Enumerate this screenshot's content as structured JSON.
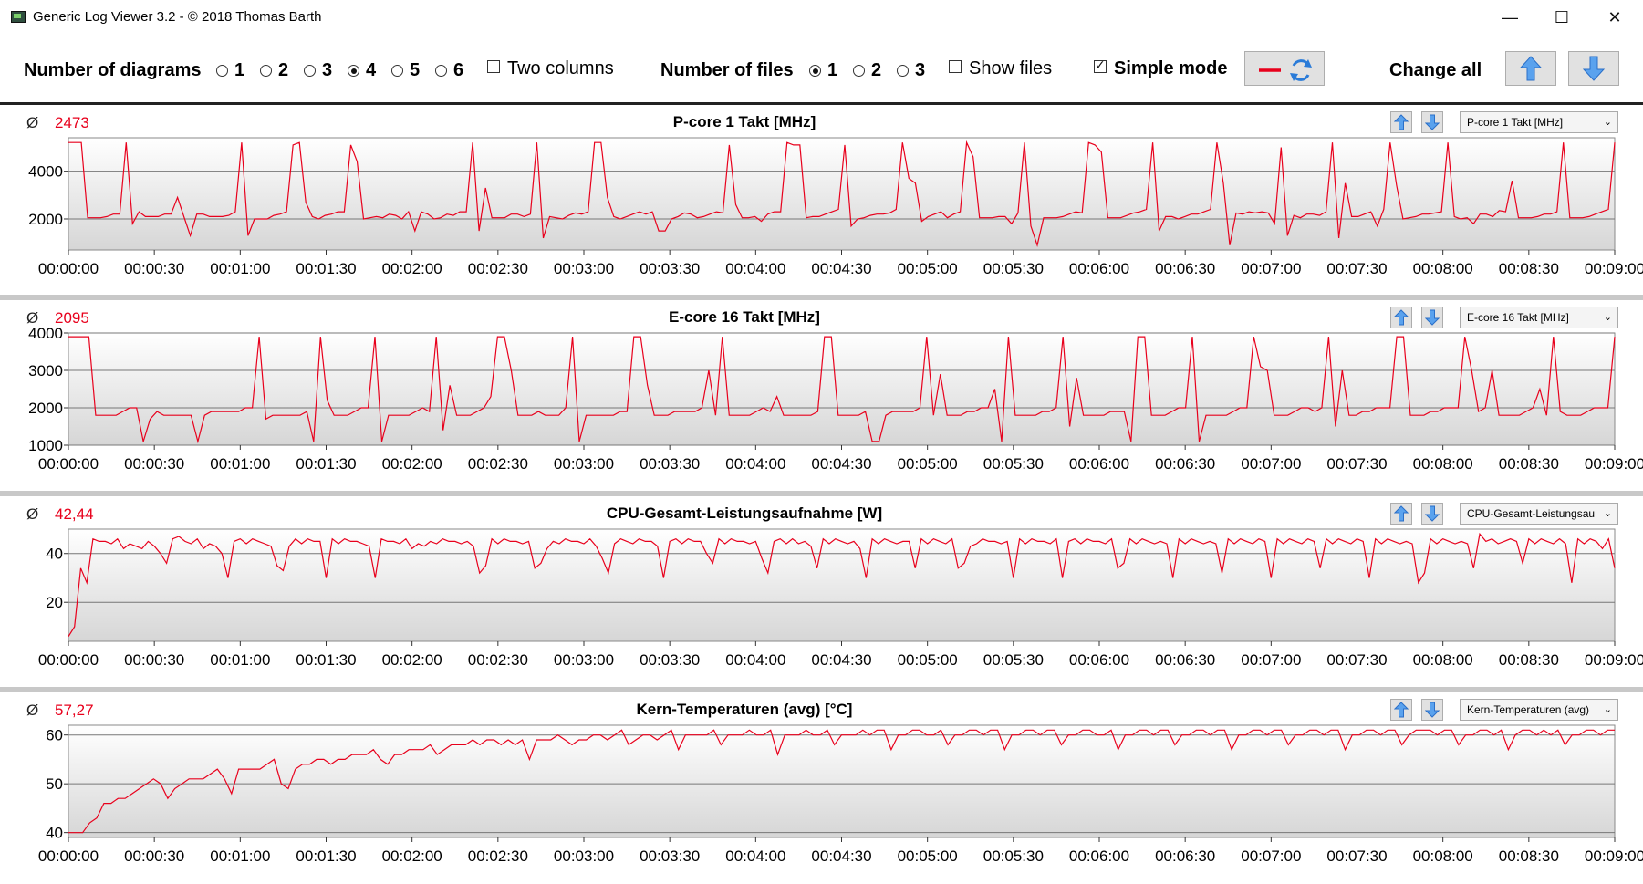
{
  "window": {
    "title": "Generic Log Viewer 3.2 - © 2018 Thomas Barth",
    "minimize_glyph": "—",
    "maximize_glyph": "☐",
    "close_glyph": "✕"
  },
  "toolbar": {
    "diagrams_label": "Number of diagrams",
    "diagram_options": [
      "1",
      "2",
      "3",
      "4",
      "5",
      "6"
    ],
    "diagrams_selected": "4",
    "two_columns_label": "Two columns",
    "two_columns_checked": false,
    "files_label": "Number of files",
    "file_options": [
      "1",
      "2",
      "3"
    ],
    "files_selected": "1",
    "show_files_label": "Show files",
    "show_files_checked": false,
    "simple_mode_label": "Simple mode",
    "simple_mode_checked": true,
    "change_all_label": "Change all"
  },
  "colors": {
    "series": "#e8001c",
    "grid": "#777777",
    "accent": "#3a7bd5"
  },
  "time_ticks": [
    "00:00:00",
    "00:00:30",
    "00:01:00",
    "00:01:30",
    "00:02:00",
    "00:02:30",
    "00:03:00",
    "00:03:30",
    "00:04:00",
    "00:04:30",
    "00:05:00",
    "00:05:30",
    "00:06:00",
    "00:06:30",
    "00:07:00",
    "00:07:30",
    "00:08:00",
    "00:08:30",
    "00:09:00"
  ],
  "panels": [
    {
      "title": "P-core 1 Takt [MHz]",
      "avg_symbol": "Ø",
      "avg": "2473",
      "select": "P-core 1 Takt [MHz]"
    },
    {
      "title": "E-core 16 Takt [MHz]",
      "avg_symbol": "Ø",
      "avg": "2095",
      "select": "E-core 16 Takt [MHz]"
    },
    {
      "title": "CPU-Gesamt-Leistungsaufnahme [W]",
      "avg_symbol": "Ø",
      "avg": "42,44",
      "select": "CPU-Gesamt-Leistungsau"
    },
    {
      "title": "Kern-Temperaturen (avg) [°C]",
      "avg_symbol": "Ø",
      "avg": "57,27",
      "select": "Kern-Temperaturen (avg)"
    }
  ],
  "chart_data": [
    {
      "type": "line",
      "title": "P-core 1 Takt [MHz]",
      "x_range": [
        "00:00:00",
        "00:09:00"
      ],
      "ylim": [
        700,
        5400
      ],
      "yticks": [
        2000,
        4000
      ],
      "grid": true,
      "series": [
        {
          "values": [
            5200,
            5200,
            5200,
            2050,
            2050,
            2050,
            2100,
            2200,
            2200,
            5200,
            1800,
            2300,
            2100,
            2100,
            2100,
            2200,
            2200,
            2900,
            2100,
            1300,
            2200,
            2200,
            2100,
            2100,
            2100,
            2150,
            2300,
            5200,
            1300,
            2000,
            2000,
            2000,
            2150,
            2200,
            2300,
            5100,
            5200,
            2700,
            2100,
            2000,
            2150,
            2200,
            2300,
            2300,
            5100,
            4400,
            2000,
            2050,
            2100,
            2050,
            2200,
            2150,
            2000,
            2300,
            1500,
            2300,
            2200,
            2000,
            2050,
            2200,
            2150,
            2300,
            2300,
            5200,
            1500,
            3300,
            2050,
            2050,
            2050,
            2200,
            2200,
            2100,
            2200,
            5200,
            1200,
            2100,
            2050,
            2000,
            2150,
            2250,
            2200,
            2300,
            5200,
            5200,
            2900,
            2100,
            2000,
            2100,
            2200,
            2300,
            2200,
            2300,
            1500,
            1500,
            2000,
            2100,
            2250,
            2200,
            2050,
            2100,
            2200,
            2300,
            2250,
            5100,
            2600,
            2050,
            2050,
            2100,
            1900,
            2200,
            2300,
            2300,
            5200,
            5100,
            5100,
            2050,
            2100,
            2100,
            2200,
            2300,
            2400,
            5100,
            1700,
            2000,
            2050,
            2150,
            2200,
            2200,
            2250,
            2400,
            5200,
            3700,
            3500,
            1900,
            2100,
            2200,
            2300,
            2050,
            2200,
            2300,
            5200,
            4600,
            2050,
            2050,
            2050,
            2100,
            2100,
            1800,
            2250,
            5200,
            1700,
            900,
            2050,
            2050,
            2050,
            2100,
            2200,
            2300,
            2250,
            5200,
            5100,
            4800,
            2050,
            2050,
            2050,
            2150,
            2250,
            2300,
            2400,
            5200,
            1500,
            2100,
            2100,
            2000,
            2100,
            2200,
            2200,
            2300,
            2400,
            5200,
            3500,
            900,
            2250,
            2200,
            2300,
            2250,
            2300,
            2250,
            1800,
            5000,
            1300,
            2150,
            2050,
            2200,
            2200,
            2150,
            2300,
            5200,
            1200,
            3500,
            2100,
            2100,
            2200,
            2300,
            1700,
            2400,
            5200,
            3400,
            2000,
            2050,
            2100,
            2200,
            2200,
            2250,
            2300,
            5200,
            2100,
            2000,
            2050,
            1800,
            2200,
            2200,
            2100,
            2350,
            2300,
            3600,
            2050,
            2050,
            2050,
            2100,
            2200,
            2200,
            2300,
            5200,
            2050,
            2050,
            2050,
            2100,
            2200,
            2300,
            2400,
            5200
          ]
        }
      ]
    },
    {
      "type": "line",
      "title": "E-core 16 Takt [MHz]",
      "x_range": [
        "00:00:00",
        "00:09:00"
      ],
      "ylim": [
        1000,
        4000
      ],
      "yticks": [
        1000,
        2000,
        3000,
        4000
      ],
      "grid": true,
      "series": [
        {
          "values": [
            3900,
            3900,
            3900,
            3900,
            1800,
            1800,
            1800,
            1800,
            1900,
            2000,
            2000,
            1100,
            1700,
            1900,
            1800,
            1800,
            1800,
            1800,
            1800,
            1100,
            1800,
            1900,
            1900,
            1900,
            1900,
            1900,
            2000,
            2000,
            3900,
            1700,
            1800,
            1800,
            1800,
            1800,
            1800,
            1900,
            1100,
            3900,
            2200,
            1800,
            1800,
            1800,
            1900,
            2000,
            2000,
            3900,
            1100,
            1800,
            1800,
            1800,
            1800,
            1900,
            2000,
            1900,
            3900,
            1400,
            2600,
            1800,
            1800,
            1800,
            1900,
            2000,
            2300,
            3900,
            3900,
            3000,
            1800,
            1800,
            1800,
            1900,
            1800,
            1800,
            1800,
            2000,
            3900,
            1100,
            1800,
            1800,
            1800,
            1800,
            1800,
            1900,
            1900,
            3900,
            3900,
            2600,
            1800,
            1800,
            1800,
            1900,
            1900,
            1900,
            1900,
            2000,
            3000,
            1800,
            3900,
            1800,
            1800,
            1800,
            1800,
            1900,
            2000,
            1900,
            2300,
            1800,
            1800,
            1800,
            1800,
            1800,
            1900,
            3900,
            3900,
            1800,
            1800,
            1800,
            1800,
            1900,
            1100,
            1100,
            1800,
            1900,
            1900,
            1900,
            1900,
            2000,
            3900,
            1800,
            2900,
            1800,
            1800,
            1800,
            1900,
            1900,
            2000,
            2000,
            2500,
            1100,
            3900,
            1800,
            1800,
            1800,
            1800,
            1900,
            1900,
            2000,
            3900,
            1500,
            2800,
            1800,
            1800,
            1800,
            1800,
            1900,
            1900,
            1900,
            1100,
            3900,
            3900,
            1800,
            1800,
            1800,
            1900,
            2000,
            2000,
            3900,
            1100,
            1800,
            1800,
            1800,
            1800,
            1900,
            2000,
            2000,
            3900,
            3100,
            3000,
            1800,
            1800,
            1800,
            1900,
            2000,
            2000,
            1900,
            2000,
            3900,
            1500,
            3000,
            1800,
            1800,
            1900,
            1900,
            2000,
            2000,
            2000,
            3900,
            3900,
            1800,
            1800,
            1800,
            1900,
            1900,
            2000,
            2000,
            2000,
            3900,
            3000,
            1900,
            2000,
            3000,
            1800,
            1800,
            1800,
            1800,
            1900,
            2000,
            2500,
            1800,
            3900,
            1900,
            1800,
            1800,
            1800,
            1900,
            2000,
            2000,
            2000,
            3900
          ]
        }
      ]
    },
    {
      "type": "line",
      "title": "CPU-Gesamt-Leistungsaufnahme [W]",
      "x_range": [
        "00:00:00",
        "00:09:00"
      ],
      "ylim": [
        4,
        50
      ],
      "yticks": [
        20,
        40
      ],
      "grid": true,
      "series": [
        {
          "values": [
            6,
            10,
            34,
            28,
            46,
            45,
            45,
            44,
            46,
            42,
            44,
            43,
            42,
            45,
            43,
            40,
            36,
            46,
            47,
            45,
            44,
            46,
            42,
            44,
            43,
            40,
            30,
            45,
            46,
            44,
            46,
            45,
            44,
            43,
            35,
            33,
            43,
            46,
            44,
            46,
            45,
            45,
            30,
            46,
            44,
            46,
            45,
            45,
            44,
            43,
            30,
            46,
            45,
            45,
            44,
            46,
            42,
            44,
            43,
            45,
            44,
            46,
            45,
            45,
            44,
            45,
            43,
            32,
            35,
            46,
            44,
            46,
            45,
            45,
            44,
            45,
            34,
            36,
            42,
            45,
            44,
            46,
            45,
            45,
            44,
            46,
            43,
            38,
            32,
            44,
            46,
            45,
            44,
            46,
            45,
            45,
            43,
            30,
            45,
            46,
            44,
            46,
            45,
            45,
            40,
            36,
            46,
            44,
            46,
            45,
            45,
            44,
            45,
            38,
            32,
            45,
            46,
            44,
            46,
            44,
            45,
            43,
            34,
            46,
            44,
            46,
            45,
            44,
            45,
            42,
            30,
            46,
            44,
            46,
            45,
            44,
            45,
            45,
            34,
            46,
            44,
            46,
            45,
            44,
            46,
            34,
            36,
            43,
            44,
            46,
            45,
            45,
            44,
            45,
            30,
            46,
            44,
            46,
            45,
            45,
            44,
            46,
            30,
            45,
            46,
            44,
            46,
            45,
            45,
            44,
            46,
            34,
            36,
            46,
            44,
            46,
            45,
            44,
            45,
            44,
            30,
            46,
            44,
            46,
            45,
            44,
            45,
            44,
            32,
            46,
            44,
            46,
            45,
            44,
            46,
            45,
            30,
            46,
            44,
            46,
            45,
            44,
            46,
            45,
            34,
            46,
            44,
            46,
            45,
            44,
            46,
            45,
            30,
            46,
            44,
            46,
            45,
            44,
            45,
            44,
            28,
            32,
            46,
            44,
            46,
            45,
            44,
            45,
            44,
            34,
            48,
            45,
            46,
            44,
            45,
            46,
            45,
            36,
            46,
            44,
            46,
            45,
            44,
            46,
            44,
            28,
            46,
            44,
            46,
            45,
            42,
            46,
            34
          ]
        }
      ]
    },
    {
      "type": "line",
      "title": "Kern-Temperaturen (avg) [°C]",
      "x_range": [
        "00:00:00",
        "00:09:00"
      ],
      "ylim": [
        39,
        62
      ],
      "yticks": [
        40,
        50,
        60
      ],
      "grid": true,
      "series": [
        {
          "values": [
            40,
            40,
            40,
            42,
            43,
            46,
            46,
            47,
            47,
            48,
            49,
            50,
            51,
            50,
            47,
            49,
            50,
            51,
            51,
            51,
            52,
            53,
            51,
            48,
            53,
            53,
            53,
            53,
            54,
            55,
            50,
            49,
            53,
            54,
            54,
            55,
            55,
            54,
            55,
            55,
            56,
            56,
            56,
            57,
            55,
            54,
            56,
            56,
            57,
            57,
            57,
            58,
            56,
            57,
            58,
            58,
            58,
            59,
            58,
            59,
            59,
            58,
            59,
            58,
            59,
            55,
            59,
            59,
            59,
            60,
            59,
            58,
            59,
            59,
            60,
            60,
            59,
            60,
            61,
            58,
            59,
            60,
            60,
            59,
            60,
            61,
            57,
            60,
            60,
            60,
            60,
            61,
            58,
            60,
            60,
            60,
            61,
            60,
            60,
            61,
            56,
            60,
            60,
            60,
            61,
            60,
            60,
            61,
            58,
            60,
            60,
            60,
            61,
            60,
            61,
            61,
            57,
            60,
            60,
            61,
            61,
            60,
            60,
            61,
            58,
            60,
            60,
            61,
            61,
            60,
            61,
            61,
            57,
            60,
            60,
            61,
            61,
            60,
            61,
            61,
            58,
            60,
            60,
            61,
            61,
            60,
            60,
            61,
            57,
            60,
            60,
            61,
            61,
            60,
            61,
            61,
            58,
            60,
            60,
            61,
            61,
            60,
            61,
            61,
            57,
            60,
            60,
            61,
            61,
            60,
            61,
            61,
            58,
            60,
            60,
            61,
            61,
            60,
            61,
            61,
            57,
            60,
            60,
            61,
            61,
            60,
            61,
            61,
            58,
            60,
            61,
            61,
            61,
            60,
            61,
            61,
            58,
            60,
            60,
            61,
            61,
            60,
            61,
            57,
            60,
            61,
            61,
            60,
            61,
            60,
            61,
            58,
            60,
            60,
            61,
            61,
            60,
            61,
            61
          ]
        }
      ]
    }
  ]
}
